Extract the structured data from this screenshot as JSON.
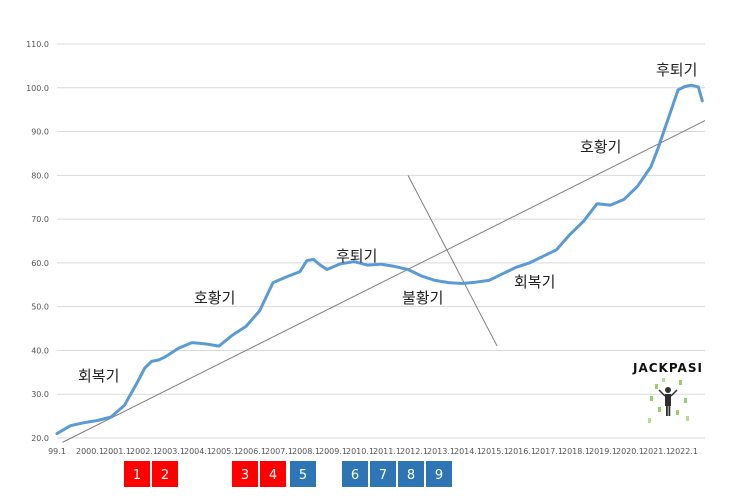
{
  "chart_data": {
    "type": "line",
    "title": "",
    "xlabel": "",
    "ylabel": "",
    "ylim": [
      20,
      110
    ],
    "grid": true,
    "y_ticks": [
      "20.0",
      "30.0",
      "40.0",
      "50.0",
      "60.0",
      "70.0",
      "80.0",
      "90.0",
      "100.0",
      "110.0"
    ],
    "x_tick_labels": [
      "99.1",
      "2000.1",
      "2001.1",
      "2002.1",
      "2003.1",
      "2004.1",
      "2005.1",
      "2006.1",
      "2007.1",
      "2008.1",
      "2009.1",
      "2010.1",
      "2011.1",
      "2012.1",
      "2013.1",
      "2014.1",
      "2015.1",
      "2016.1",
      "2017.1",
      "2018.1",
      "2019.1",
      "2020.1",
      "2021.1",
      "2022.1"
    ],
    "series": [
      {
        "color": "#5b9bd5",
        "x": [
          1999.0,
          1999.5,
          2000.0,
          2000.5,
          2001.0,
          2001.5,
          2002.0,
          2002.25,
          2002.5,
          2002.75,
          2003.0,
          2003.5,
          2004.0,
          2004.5,
          2005.0,
          2005.5,
          2006.0,
          2006.5,
          2007.0,
          2007.5,
          2008.0,
          2008.25,
          2008.5,
          2008.75,
          2009.0,
          2009.5,
          2010.0,
          2010.5,
          2011.0,
          2011.5,
          2012.0,
          2012.5,
          2013.0,
          2013.5,
          2014.0,
          2014.5,
          2015.0,
          2015.5,
          2016.0,
          2016.5,
          2017.0,
          2017.5,
          2018.0,
          2018.5,
          2019.0,
          2019.5,
          2020.0,
          2020.5,
          2021.0,
          2021.25,
          2021.5,
          2021.75,
          2022.0,
          2022.25,
          2022.5,
          2022.75,
          2022.9
        ],
        "y": [
          21.0,
          22.8,
          23.5,
          24.0,
          24.8,
          27.5,
          33.0,
          36.0,
          37.5,
          37.8,
          38.5,
          40.5,
          41.8,
          41.5,
          41.0,
          43.5,
          45.5,
          49.0,
          55.5,
          56.8,
          58.0,
          60.5,
          60.8,
          59.5,
          58.5,
          59.8,
          60.3,
          59.5,
          59.7,
          59.2,
          58.5,
          57.0,
          56.0,
          55.5,
          55.3,
          55.6,
          56.0,
          57.5,
          59.0,
          60.0,
          61.5,
          63.0,
          66.5,
          69.5,
          73.5,
          73.2,
          74.5,
          77.5,
          82.0,
          86.0,
          90.5,
          95.0,
          99.5,
          100.3,
          100.6,
          100.2,
          97.0
        ]
      }
    ],
    "annotations": [
      "회복기",
      "호황기",
      "후퇴기",
      "불황기",
      "회복기",
      "호황기",
      "후퇴기"
    ],
    "trend_line": {
      "x": [
        1999.2,
        2023.0
      ],
      "y": [
        19.0,
        92.5
      ],
      "color": "#7f7f7f"
    },
    "cross_line": {
      "x": [
        2012.0,
        2015.3
      ],
      "y": [
        80.0,
        41.0
      ],
      "color": "#7f7f7f"
    }
  },
  "markers": {
    "red": [
      "1",
      "2",
      "3",
      "4"
    ],
    "blue": [
      "5",
      "6",
      "7",
      "8",
      "9"
    ]
  },
  "logo": {
    "text": "JACKPASI"
  },
  "colors": {
    "red": "#ff0000",
    "blue": "#2e75b6",
    "line": "#5b9bd5",
    "grid": "#d9d9d9"
  }
}
